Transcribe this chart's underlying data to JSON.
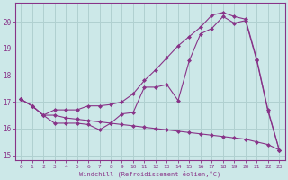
{
  "xlabel": "Windchill (Refroidissement éolien,°C)",
  "background_color": "#cce8e8",
  "grid_color": "#b0d0d0",
  "line_color": "#883388",
  "xlim": [
    -0.5,
    23.5
  ],
  "ylim": [
    14.8,
    20.7
  ],
  "xticks": [
    0,
    1,
    2,
    3,
    4,
    5,
    6,
    7,
    8,
    9,
    10,
    11,
    12,
    13,
    14,
    15,
    16,
    17,
    18,
    19,
    20,
    21,
    22,
    23
  ],
  "yticks": [
    15,
    16,
    17,
    18,
    19,
    20
  ],
  "line1_x": [
    0,
    1,
    2,
    3,
    4,
    5,
    6,
    7,
    8,
    9,
    10,
    11,
    12,
    13,
    14,
    15,
    16,
    17,
    18,
    19,
    20,
    21,
    22,
    23
  ],
  "line1_y": [
    17.1,
    16.85,
    16.5,
    16.2,
    16.2,
    16.2,
    16.15,
    15.95,
    16.2,
    16.55,
    16.6,
    17.55,
    17.55,
    17.65,
    17.05,
    18.55,
    19.55,
    19.75,
    20.2,
    19.95,
    20.05,
    18.55,
    16.65,
    15.2
  ],
  "line2_x": [
    0,
    1,
    2,
    3,
    4,
    5,
    6,
    7,
    8,
    9,
    10,
    11,
    12,
    13,
    14,
    15,
    16,
    17,
    18,
    19,
    20,
    21,
    22,
    23
  ],
  "line2_y": [
    17.1,
    16.85,
    16.5,
    16.7,
    16.7,
    16.7,
    16.85,
    16.85,
    16.9,
    17.0,
    17.3,
    17.8,
    18.2,
    18.65,
    19.1,
    19.45,
    19.8,
    20.25,
    20.35,
    20.2,
    20.1,
    18.6,
    16.7,
    15.2
  ],
  "line3_x": [
    0,
    1,
    2,
    3,
    4,
    5,
    6,
    7,
    8,
    9,
    10,
    11,
    12,
    13,
    14,
    15,
    16,
    17,
    18,
    19,
    20,
    21,
    22,
    23
  ],
  "line3_y": [
    17.1,
    16.85,
    16.5,
    16.5,
    16.4,
    16.35,
    16.3,
    16.25,
    16.2,
    16.15,
    16.1,
    16.05,
    16.0,
    15.95,
    15.9,
    15.85,
    15.8,
    15.75,
    15.7,
    15.65,
    15.6,
    15.5,
    15.4,
    15.2
  ]
}
